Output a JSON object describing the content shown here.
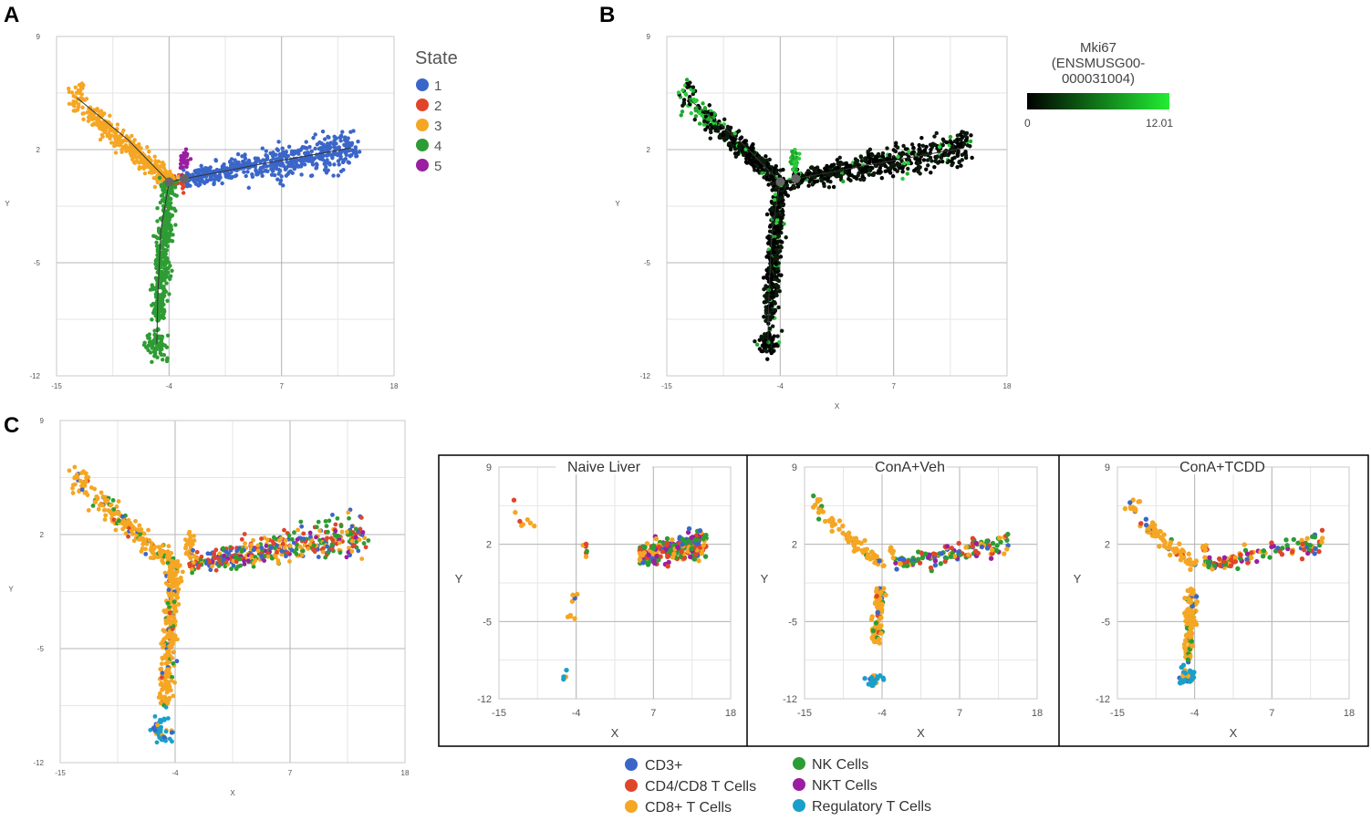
{
  "panels": {
    "a": "A",
    "b": "B",
    "c": "C"
  },
  "colors": {
    "state": [
      "#3b66c9",
      "#e0452a",
      "#f5a623",
      "#2e9c34",
      "#9a1fa0"
    ],
    "cell": [
      "#3b66c9",
      "#e0452a",
      "#f5a623",
      "#2e9c34",
      "#9a1fa0",
      "#1a9fc9"
    ],
    "gradient_low": "#000000",
    "gradient_high": "#22ee33",
    "trajectory": "#333333"
  },
  "state_legend": {
    "title": "State",
    "items": [
      "1",
      "2",
      "3",
      "4",
      "5"
    ]
  },
  "mki67": {
    "title_lines": [
      "Mki67",
      "(ENSMUSG00-",
      "000031004)"
    ],
    "min_label": "0",
    "max_label": "12.01"
  },
  "cell_legend": {
    "items": [
      "CD3+",
      "CD4/CD8 T Cells",
      "CD8+ T Cells",
      "NK Cells",
      "NKT Cells",
      "Regulatory T Cells"
    ]
  },
  "chart_data": [
    {
      "type": "scatter",
      "panel": "A",
      "title": "",
      "xlabel": "",
      "ylabel": "Y",
      "xlim": [
        -15,
        18
      ],
      "ylim": [
        -12,
        9
      ],
      "xticks": [
        "-15",
        "-4",
        "7",
        "18"
      ],
      "yticks": [
        "9",
        "2",
        "-5",
        "-12"
      ],
      "color_by": "State",
      "series": [
        {
          "name": "1",
          "branch": "right arm from branch point (-4, 0) to (14, 2)"
        },
        {
          "name": "2",
          "branch": "near branch point (-4, 0)"
        },
        {
          "name": "3",
          "branch": "upper-left arm to (-13, 5)"
        },
        {
          "name": "4",
          "branch": "lower arm to (-5, -10)"
        },
        {
          "name": "5",
          "branch": "small cluster at (-2.5, 1.2)"
        }
      ]
    },
    {
      "type": "scatter",
      "panel": "B",
      "title": "",
      "xlabel": "X",
      "ylabel": "Y",
      "xlim": [
        -15,
        18
      ],
      "ylim": [
        -12,
        9
      ],
      "xticks": [
        "-15",
        "-4",
        "7",
        "18"
      ],
      "yticks": [
        "9",
        "2",
        "-5",
        "-12"
      ],
      "color_by": "Mki67 expression",
      "color_range": [
        0,
        12.01
      ]
    },
    {
      "type": "scatter",
      "panel": "C",
      "title": "",
      "xlabel": "X",
      "ylabel": "Y",
      "xlim": [
        -15,
        18
      ],
      "ylim": [
        -12,
        9
      ],
      "xticks": [
        "-15",
        "-4",
        "7",
        "18"
      ],
      "yticks": [
        "9",
        "2",
        "-5",
        "-12"
      ],
      "color_by": "Cell type"
    },
    {
      "type": "scatter",
      "panel": "C-inset",
      "title": "Naive Liver",
      "xlabel": "X",
      "ylabel": "Y",
      "xlim": [
        -15,
        18
      ],
      "ylim": [
        -12,
        9
      ],
      "xticks": [
        "-15",
        "-4",
        "7",
        "18"
      ],
      "yticks": [
        "9",
        "2",
        "-5",
        "-12"
      ]
    },
    {
      "type": "scatter",
      "panel": "C-inset",
      "title": "ConA+Veh",
      "xlabel": "X",
      "ylabel": "Y",
      "xlim": [
        -15,
        18
      ],
      "ylim": [
        -12,
        9
      ],
      "xticks": [
        "-15",
        "-4",
        "7",
        "18"
      ],
      "yticks": [
        "9",
        "2",
        "-5",
        "-12"
      ]
    },
    {
      "type": "scatter",
      "panel": "C-inset",
      "title": "ConA+TCDD",
      "xlabel": "X",
      "ylabel": "Y",
      "xlim": [
        -15,
        18
      ],
      "ylim": [
        -12,
        9
      ],
      "xticks": [
        "-15",
        "-4",
        "7",
        "18"
      ],
      "yticks": [
        "9",
        "2",
        "-5",
        "-12"
      ]
    }
  ]
}
